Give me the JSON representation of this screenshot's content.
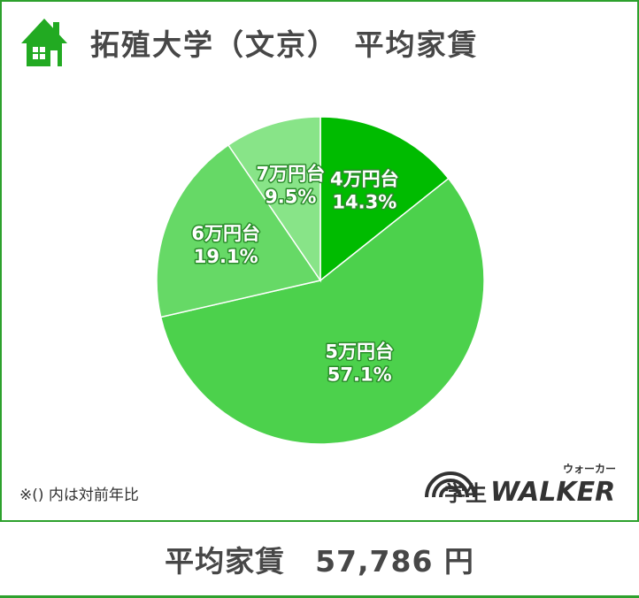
{
  "header": {
    "title": "拓殖大学（文京）　平均家賃",
    "icon": "house-icon"
  },
  "chart_data": {
    "type": "pie",
    "title": "拓殖大学（文京）　平均家賃",
    "slices": [
      {
        "label": "4万円台",
        "value": 14.3,
        "value_label": "14.3%",
        "color": "#00bb00"
      },
      {
        "label": "5万円台",
        "value": 57.1,
        "value_label": "57.1%",
        "color": "#4cd14c"
      },
      {
        "label": "6万円台",
        "value": 19.1,
        "value_label": "19.1%",
        "color": "#66d966"
      },
      {
        "label": "7万円台",
        "value": 9.5,
        "value_label": "9.5%",
        "color": "#88e488"
      }
    ],
    "start": "12 o'clock",
    "direction": "clockwise"
  },
  "note": "※()  内は対前年比",
  "logo": {
    "text_kanji": "学生",
    "text_latin": "WALKER",
    "text_kana": "ウォーカー"
  },
  "footer": {
    "label": "平均家賃　57,786 円"
  },
  "colors": {
    "accent": "#2da12d",
    "text": "#474747"
  }
}
